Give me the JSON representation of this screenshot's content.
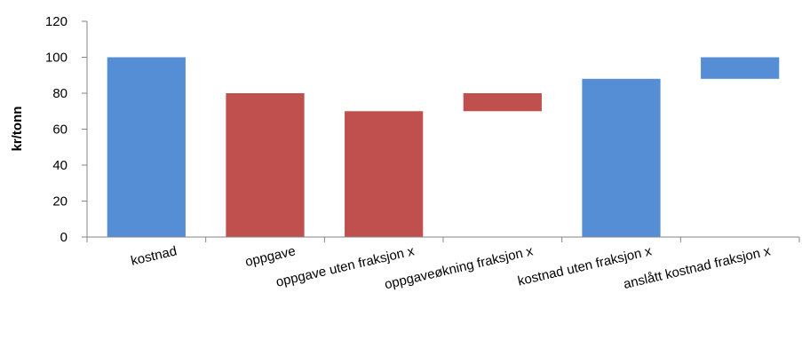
{
  "chart_data": {
    "type": "bar",
    "subtype": "waterfall",
    "title": "",
    "xlabel": "",
    "ylabel": "kr/tonn",
    "ylim": [
      0,
      120
    ],
    "yticks": [
      0,
      20,
      40,
      60,
      80,
      100,
      120
    ],
    "grid": false,
    "legend": "none",
    "categories": [
      "kostnad",
      "oppgave",
      "oppgave uten fraksjon x",
      "oppgaveøkning fraksjon x",
      "kostnad uten fraksjon x",
      "anslått kostnad fraksjon x"
    ],
    "bars": [
      {
        "category": "kostnad",
        "base": 0,
        "top": 100,
        "color": "#558ED5"
      },
      {
        "category": "oppgave",
        "base": 0,
        "top": 80,
        "color": "#C0504D"
      },
      {
        "category": "oppgave uten fraksjon x",
        "base": 0,
        "top": 70,
        "color": "#C0504D"
      },
      {
        "category": "oppgaveøkning fraksjon x",
        "base": 70,
        "top": 80,
        "color": "#C0504D"
      },
      {
        "category": "kostnad uten fraksjon x",
        "base": 0,
        "top": 88,
        "color": "#558ED5"
      },
      {
        "category": "anslått kostnad fraksjon x",
        "base": 88,
        "top": 100,
        "color": "#558ED5"
      }
    ],
    "colors": {
      "blue": "#558ED5",
      "red": "#C0504D",
      "axis": "#868686"
    }
  }
}
